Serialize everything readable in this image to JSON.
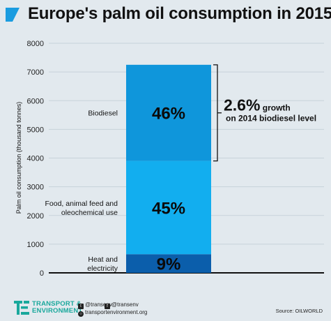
{
  "header": {
    "title": "Europe's palm oil consumption in 2015"
  },
  "chart_data": {
    "type": "bar",
    "stacked": true,
    "ylabel": "Palm oil consumption (thousand tonnes)",
    "ylim": [
      0,
      8000
    ],
    "yticks": [
      "0",
      "1000",
      "2000",
      "3000",
      "4000",
      "5000",
      "6000",
      "7000",
      "8000"
    ],
    "grid": true,
    "segments": [
      {
        "name_lines": [
          "Heat and",
          "electricity"
        ],
        "value": 650,
        "label": "9%",
        "color": "#0b5eab"
      },
      {
        "name_lines": [
          "Food, animal feed and",
          "oleochemical use"
        ],
        "value": 3250,
        "label": "45%",
        "color": "#12aeef"
      },
      {
        "name_lines": [
          "Biodiesel"
        ],
        "value": 3350,
        "label": "46%",
        "color": "#0f96db"
      }
    ],
    "annotation": {
      "value": "2.6%",
      "line1_suffix": " growth",
      "line2": "on 2014 biodiesel level"
    }
  },
  "footer": {
    "logo_line1": "TRANSPORT &",
    "logo_line2": "ENVIRONMENT",
    "twitter": "@transenv",
    "facebook": "@transenv",
    "website": "transportenvironment.org",
    "source": "Source: OILWORLD"
  },
  "colors": {
    "background": "#e2e9ee",
    "brand_teal": "#1aa89c",
    "title_mark": "#1a9ce0"
  }
}
